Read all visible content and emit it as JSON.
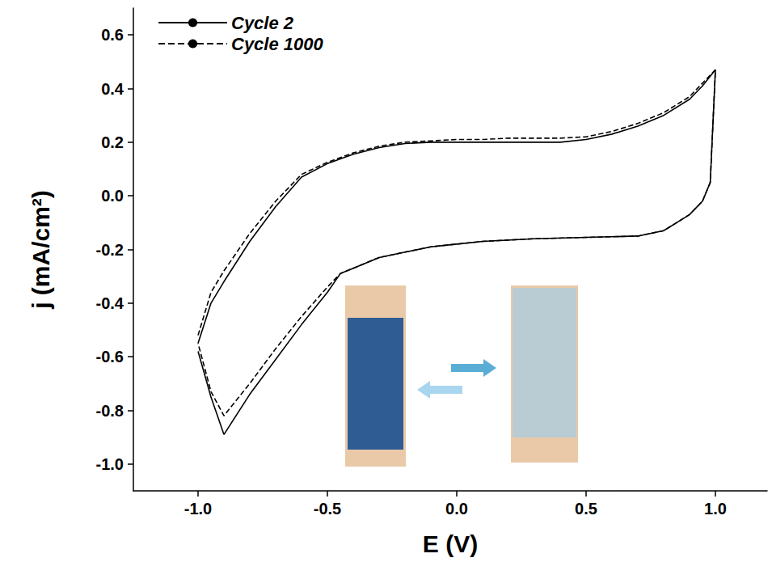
{
  "chart_data": {
    "type": "line",
    "x_label": "E (V)",
    "y_label": "j (mA/cm²)",
    "x": [
      -1.0,
      -0.95,
      -0.9,
      -0.8,
      -0.7,
      -0.6,
      -0.5,
      -0.4,
      -0.3,
      -0.2,
      -0.1,
      0.0,
      0.1,
      0.2,
      0.3,
      0.4,
      0.5,
      0.6,
      0.7,
      0.8,
      0.9,
      0.95,
      1.0,
      0.98,
      0.95,
      0.9,
      0.85,
      0.8,
      0.7,
      0.5,
      0.3,
      0.1,
      0.0,
      -0.1,
      -0.2,
      -0.3,
      -0.4,
      -0.45,
      -0.5,
      -0.6,
      -0.7,
      -0.8,
      -0.9,
      -0.95,
      -1.0
    ],
    "series": [
      {
        "name": "Cycle 2",
        "color": "#000000",
        "line_style": "solid",
        "values": [
          -0.55,
          -0.4,
          -0.32,
          -0.17,
          -0.04,
          0.07,
          0.12,
          0.155,
          0.18,
          0.195,
          0.2,
          0.2,
          0.2,
          0.2,
          0.2,
          0.2,
          0.21,
          0.23,
          0.26,
          0.3,
          0.36,
          0.41,
          0.47,
          0.05,
          -0.02,
          -0.07,
          -0.1,
          -0.13,
          -0.15,
          -0.155,
          -0.16,
          -0.17,
          -0.18,
          -0.19,
          -0.21,
          -0.23,
          -0.27,
          -0.29,
          -0.36,
          -0.48,
          -0.61,
          -0.74,
          -0.89,
          -0.75,
          -0.58
        ]
      },
      {
        "name": "Cycle 1000",
        "color": "#000000",
        "line_style": "dashed",
        "values": [
          -0.52,
          -0.36,
          -0.28,
          -0.14,
          -0.02,
          0.08,
          0.125,
          0.16,
          0.185,
          0.2,
          0.205,
          0.21,
          0.21,
          0.215,
          0.215,
          0.215,
          0.22,
          0.24,
          0.27,
          0.31,
          0.37,
          0.42,
          0.47,
          0.05,
          -0.02,
          -0.07,
          -0.1,
          -0.13,
          -0.15,
          -0.155,
          -0.16,
          -0.17,
          -0.18,
          -0.19,
          -0.21,
          -0.23,
          -0.27,
          -0.29,
          -0.34,
          -0.45,
          -0.57,
          -0.7,
          -0.82,
          -0.73,
          -0.55
        ]
      }
    ],
    "xlim": [
      -1.25,
      1.2
    ],
    "xticks": [
      {
        "value": -1.0,
        "label": "-1.0"
      },
      {
        "value": -0.5,
        "label": "-0.5"
      },
      {
        "value": 0.0,
        "label": "0.0"
      },
      {
        "value": 0.5,
        "label": "0.5"
      },
      {
        "value": 1.0,
        "label": "1.0"
      }
    ],
    "ylim": [
      -1.1,
      0.7
    ],
    "yticks": [
      {
        "value": -1.0,
        "label": "-1.0"
      },
      {
        "value": -0.8,
        "label": "-0.8"
      },
      {
        "value": -0.6,
        "label": "-0.6"
      },
      {
        "value": -0.4,
        "label": "-0.4"
      },
      {
        "value": -0.2,
        "label": "-0.2"
      },
      {
        "value": 0.0,
        "label": "0.0"
      },
      {
        "value": 0.2,
        "label": "0.2"
      },
      {
        "value": 0.4,
        "label": "0.4"
      },
      {
        "value": 0.6,
        "label": "0.6"
      }
    ],
    "grid": false,
    "legend": "upper left"
  }
}
